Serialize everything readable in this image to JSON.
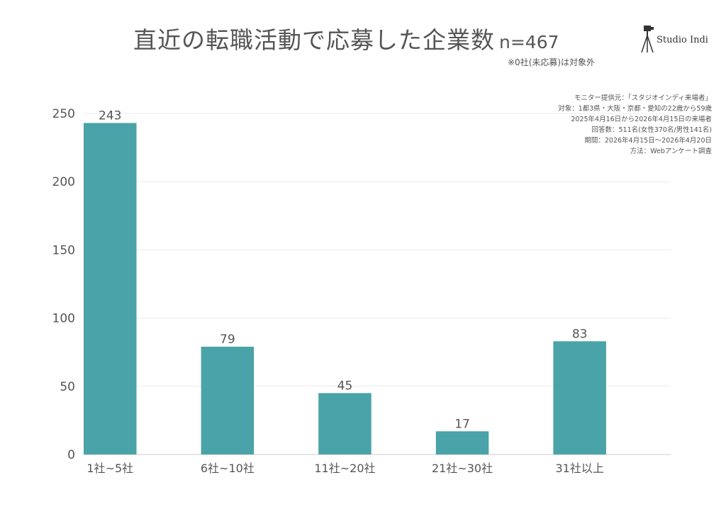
{
  "header": {
    "title": "直近の転職活動で応募した企業数",
    "sample_size": "n=467",
    "note": "※0社(未応募)は対象外"
  },
  "logo": {
    "text": "Studio Indi",
    "icon": "camera-tripod-icon"
  },
  "source": {
    "lines": [
      "モニター提供元：「スタジオインディ来場者」",
      "対象：1都3県・大阪・京都・愛知の22歳から59歳",
      "2025年4月16日から2026年4月15日の来場者",
      "回答数：511名(女性370名/男性141名)",
      "期間：2026年4月15日〜2026年4月20日",
      "方法：Webアンケート調査"
    ]
  },
  "chart_data": {
    "type": "bar",
    "categories": [
      "1社~5社",
      "6社~10社",
      "11社~20社",
      "21社~30社",
      "31社以上"
    ],
    "values": [
      243,
      79,
      45,
      17,
      83
    ],
    "title": "直近の転職活動で応募した企業数",
    "xlabel": "",
    "ylabel": "",
    "ylim": [
      0,
      250
    ],
    "yticks": [
      0,
      50,
      100,
      150,
      200,
      250
    ],
    "grid": true,
    "legend": "none",
    "colors": {
      "bar": "#4aa3a8",
      "grid": "#ececec",
      "axis": "#cccccc"
    }
  }
}
